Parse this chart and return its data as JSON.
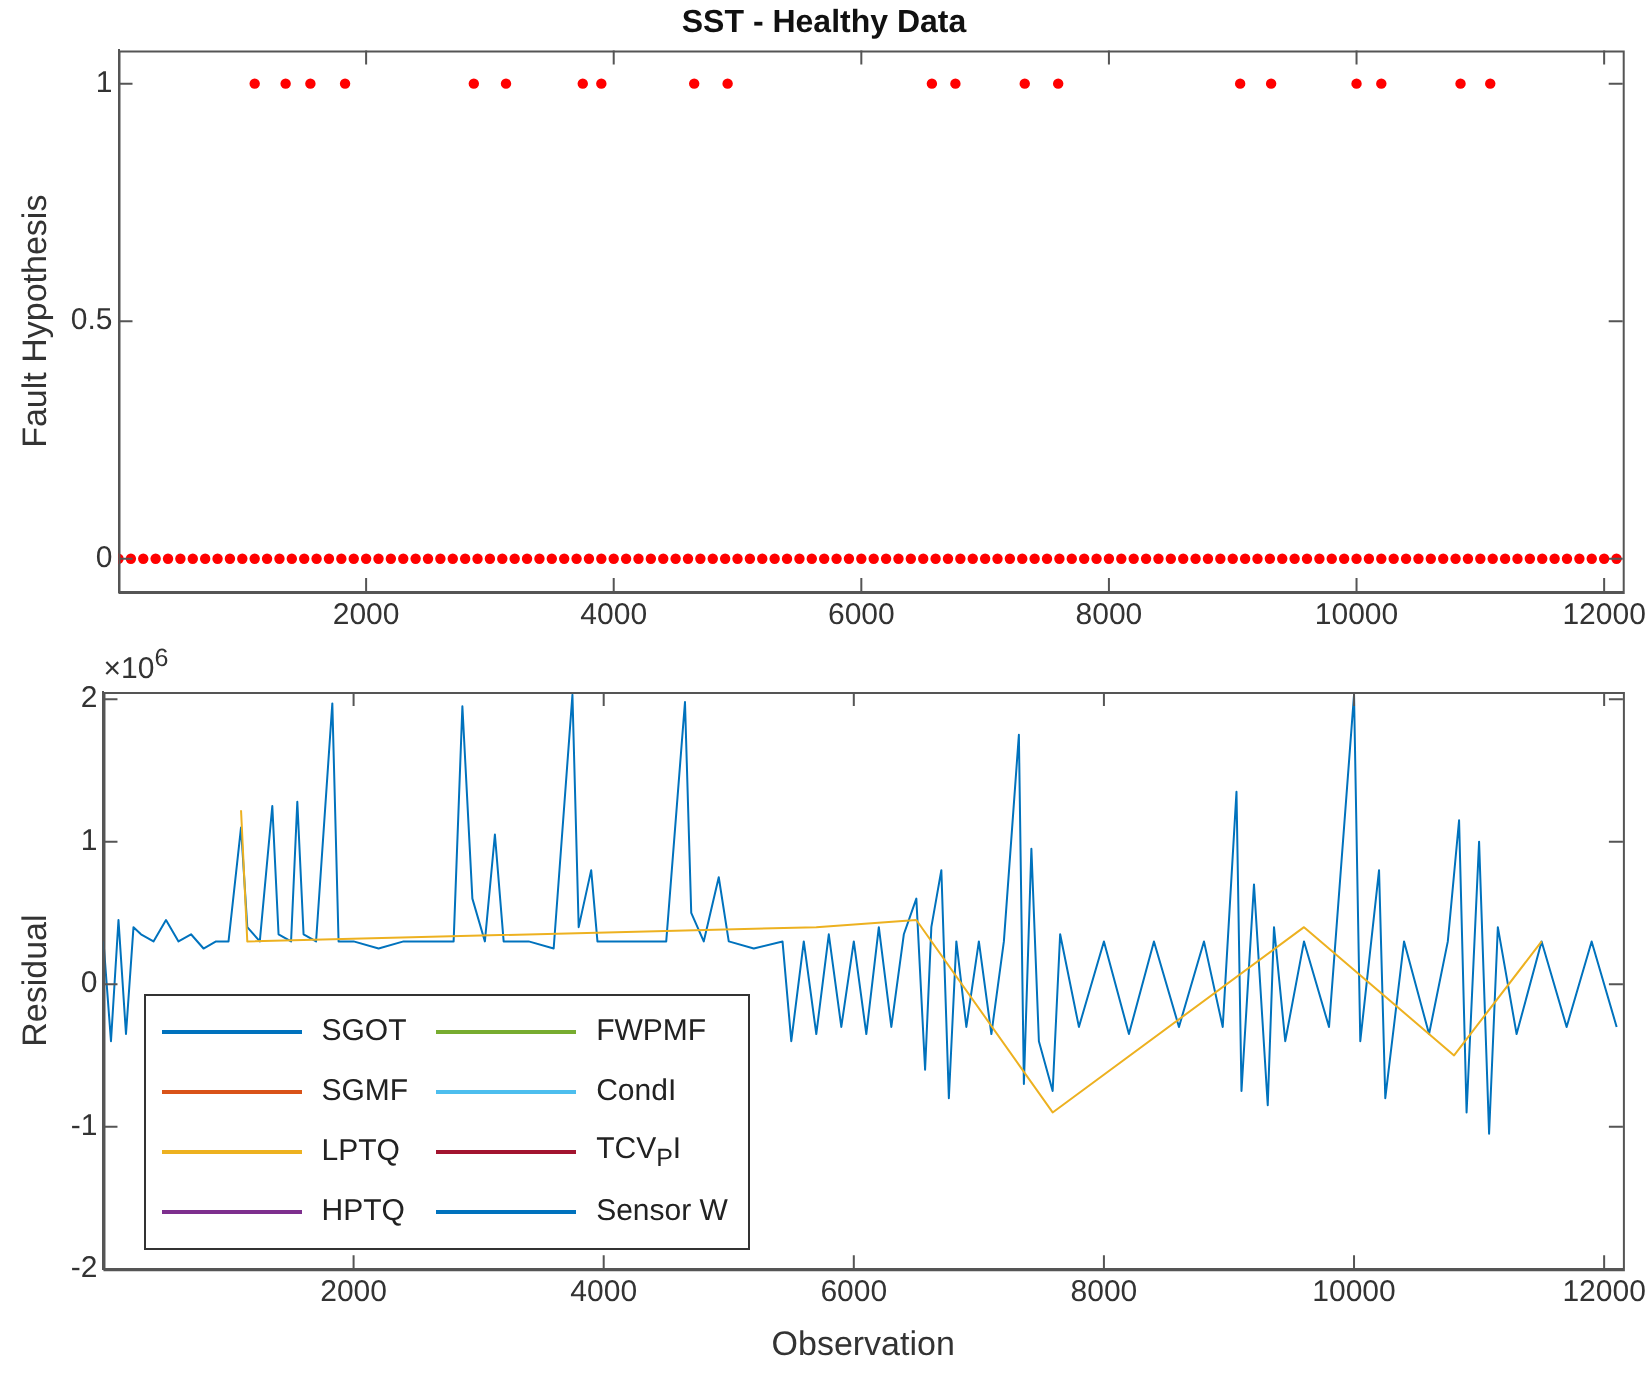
{
  "chart_data": [
    {
      "type": "scatter",
      "title": "SST - Healthy Data",
      "ylabel": "Fault Hypothesis",
      "xlim": [
        0,
        12150
      ],
      "xticks": [
        2000,
        4000,
        6000,
        8000,
        10000,
        12000
      ],
      "ylim": [
        -0.07,
        1.07
      ],
      "yticks": [
        0,
        0.5,
        1
      ],
      "grid": false,
      "legend": false,
      "marker": "circle",
      "series": [
        {
          "color": "#ff0000",
          "x": [
            1100,
            1350,
            1550,
            1830,
            2870,
            3130,
            3750,
            3900,
            4650,
            4920,
            6570,
            6760,
            7320,
            7590,
            9060,
            9310,
            10000,
            10200,
            10840,
            11080,
            0,
            100,
            200,
            300,
            400,
            500,
            600,
            700,
            800,
            900,
            1000,
            1100,
            1200,
            1300,
            1400,
            1500,
            1600,
            1700,
            1800,
            1900,
            2000,
            2100,
            2200,
            2300,
            2400,
            2500,
            2600,
            2700,
            2800,
            2900,
            3000,
            3100,
            3200,
            3300,
            3400,
            3500,
            3600,
            3700,
            3800,
            3900,
            4000,
            4100,
            4200,
            4300,
            4400,
            4500,
            4600,
            4700,
            4800,
            4900,
            5000,
            5100,
            5200,
            5300,
            5400,
            5500,
            5600,
            5700,
            5800,
            5900,
            6000,
            6100,
            6200,
            6300,
            6400,
            6500,
            6600,
            6700,
            6800,
            6900,
            7000,
            7100,
            7200,
            7300,
            7400,
            7500,
            7600,
            7700,
            7800,
            7900,
            8000,
            8100,
            8200,
            8300,
            8400,
            8500,
            8600,
            8700,
            8800,
            8900,
            9000,
            9100,
            9200,
            9300,
            9400,
            9500,
            9600,
            9700,
            9800,
            9900,
            10000,
            10100,
            10200,
            10300,
            10400,
            10500,
            10600,
            10700,
            10800,
            10900,
            11000,
            11100,
            11200,
            11300,
            11400,
            11500,
            11600,
            11700,
            11800,
            11900,
            12000,
            12100
          ],
          "values": [
            1,
            1,
            1,
            1,
            1,
            1,
            1,
            1,
            1,
            1,
            1,
            1,
            1,
            1,
            1,
            1,
            1,
            1,
            1,
            1,
            0,
            0,
            0,
            0,
            0,
            0,
            0,
            0,
            0,
            0,
            0,
            0,
            0,
            0,
            0,
            0,
            0,
            0,
            0,
            0,
            0,
            0,
            0,
            0,
            0,
            0,
            0,
            0,
            0,
            0,
            0,
            0,
            0,
            0,
            0,
            0,
            0,
            0,
            0,
            0,
            0,
            0,
            0,
            0,
            0,
            0,
            0,
            0,
            0,
            0,
            0,
            0,
            0,
            0,
            0,
            0,
            0,
            0,
            0,
            0,
            0,
            0,
            0,
            0,
            0,
            0,
            0,
            0,
            0,
            0,
            0,
            0,
            0,
            0,
            0,
            0,
            0,
            0,
            0,
            0,
            0,
            0,
            0,
            0,
            0,
            0,
            0,
            0,
            0,
            0,
            0,
            0,
            0,
            0,
            0,
            0,
            0,
            0,
            0,
            0,
            0,
            0,
            0,
            0,
            0,
            0,
            0,
            0,
            0,
            0,
            0,
            0,
            0,
            0,
            0,
            0,
            0,
            0,
            0,
            0,
            0,
            0
          ]
        }
      ]
    },
    {
      "type": "line",
      "xlabel": "Observation",
      "ylabel": "Residual",
      "xlim": [
        0,
        12150
      ],
      "xticks": [
        2000,
        4000,
        6000,
        8000,
        10000,
        12000
      ],
      "ylim": [
        -2,
        2.05
      ],
      "yticks": [
        -2,
        -1,
        0,
        1,
        2
      ],
      "grid": false,
      "legend": "bottom left",
      "marker": "none",
      "line_style": "solid",
      "annotations": [
        "×10$^{6}$"
      ],
      "series": [
        {
          "name": "SGOT",
          "color": "#0072bd"
        },
        {
          "name": "SGMF",
          "color": "#d95319"
        },
        {
          "name": "LPTQ",
          "color": "#edb120",
          "x": [
            1100,
            1150,
            5700,
            6500,
            7590,
            9600,
            10800,
            11500
          ],
          "values": [
            1.22,
            0.3,
            0.4,
            0.45,
            -0.9,
            0.4,
            -0.5,
            0.3
          ]
        },
        {
          "name": "HPTQ",
          "color": "#7e2f8e"
        },
        {
          "name": "FWPMF",
          "color": "#77ac30"
        },
        {
          "name": "CondI",
          "color": "#4dbeee"
        },
        {
          "name": "TCV$_{P}$I",
          "color": "#a2142f"
        },
        {
          "name": "Sensor W",
          "color": "#0072bd",
          "x": [
            0,
            60,
            120,
            180,
            240,
            300,
            400,
            500,
            600,
            700,
            800,
            900,
            1000,
            1100,
            1150,
            1250,
            1350,
            1400,
            1500,
            1550,
            1600,
            1700,
            1830,
            1880,
            2000,
            2200,
            2400,
            2600,
            2800,
            2870,
            2950,
            3050,
            3130,
            3200,
            3400,
            3600,
            3750,
            3800,
            3900,
            3950,
            4100,
            4300,
            4500,
            4650,
            4700,
            4800,
            4920,
            5000,
            5200,
            5430,
            5500,
            5600,
            5700,
            5800,
            5900,
            6000,
            6100,
            6200,
            6300,
            6400,
            6500,
            6570,
            6620,
            6700,
            6760,
            6820,
            6900,
            7000,
            7100,
            7200,
            7320,
            7360,
            7420,
            7480,
            7590,
            7650,
            7800,
            8000,
            8200,
            8400,
            8600,
            8800,
            8950,
            9060,
            9100,
            9200,
            9310,
            9360,
            9450,
            9600,
            9800,
            10000,
            10050,
            10200,
            10250,
            10400,
            10600,
            10750,
            10840,
            10900,
            11000,
            11080,
            11150,
            11300,
            11500,
            11700,
            11900,
            12100
          ],
          "values": [
            0.3,
            -0.4,
            0.45,
            -0.35,
            0.4,
            0.35,
            0.3,
            0.45,
            0.3,
            0.35,
            0.25,
            0.3,
            0.3,
            1.1,
            0.4,
            0.3,
            1.25,
            0.35,
            0.3,
            1.28,
            0.35,
            0.3,
            1.97,
            0.3,
            0.3,
            0.25,
            0.3,
            0.3,
            0.3,
            1.95,
            0.6,
            0.3,
            1.05,
            0.3,
            0.3,
            0.25,
            2.03,
            0.4,
            0.8,
            0.3,
            0.3,
            0.3,
            0.3,
            1.98,
            0.5,
            0.3,
            0.75,
            0.3,
            0.25,
            0.3,
            -0.4,
            0.3,
            -0.35,
            0.35,
            -0.3,
            0.3,
            -0.35,
            0.4,
            -0.3,
            0.35,
            0.6,
            -0.6,
            0.4,
            0.8,
            -0.8,
            0.3,
            -0.3,
            0.3,
            -0.35,
            0.3,
            1.75,
            -0.7,
            0.95,
            -0.4,
            -0.75,
            0.35,
            -0.3,
            0.3,
            -0.35,
            0.3,
            -0.3,
            0.3,
            -0.3,
            1.35,
            -0.75,
            0.7,
            -0.85,
            0.4,
            -0.4,
            0.3,
            -0.3,
            2.03,
            -0.4,
            0.8,
            -0.8,
            0.3,
            -0.35,
            0.3,
            1.15,
            -0.9,
            1.0,
            -1.05,
            0.4,
            -0.35,
            0.3,
            -0.3,
            0.3,
            -0.3
          ]
        }
      ]
    }
  ]
}
